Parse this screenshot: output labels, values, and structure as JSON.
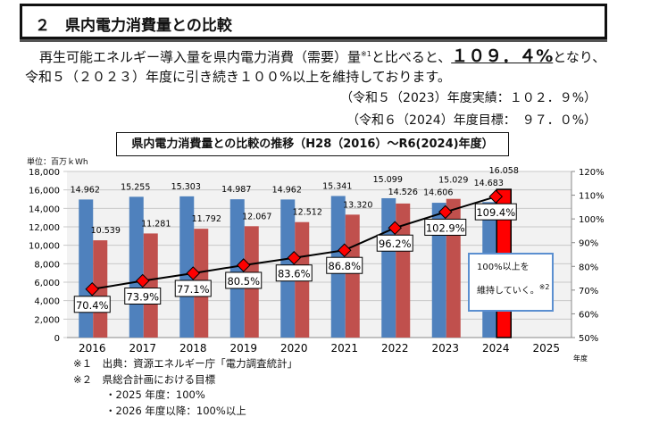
{
  "header": {
    "title": "２　県内電力消費量との比較"
  },
  "body": {
    "line1_a": "再生可能エネルギー導入量を県内電力消費（需要）量",
    "line1_sup": "※1",
    "line1_b": "と比べると、",
    "line1_highlight": "１０９．４%",
    "line1_c": "となり、",
    "line2": "令和５（２０２３）年度に引き続き１００%以上を維持しております。",
    "result": "（令和５（2023）年度実績：１０２．９%）",
    "target": "（令和６（2024）年度目標：　９７．０%）"
  },
  "chart_data": {
    "type": "bar+line",
    "title": "県内電力消費量との比較の推移（H28（2016）～R6(2024)年度）",
    "unit_label": "単位：百万ｋWh",
    "x_suffix": "年度",
    "categories": [
      "2016",
      "2017",
      "2018",
      "2019",
      "2020",
      "2021",
      "2022",
      "2023",
      "2024",
      "2025"
    ],
    "left_axis": {
      "range": [
        0,
        18000
      ],
      "ticks": [
        "0",
        "2,000",
        "4,000",
        "6,000",
        "8,000",
        "10,000",
        "12,000",
        "14,000",
        "16,000",
        "18,000"
      ]
    },
    "right_axis": {
      "range": [
        50,
        120
      ],
      "ticks": [
        "50%",
        "60%",
        "70%",
        "80%",
        "90%",
        "100%",
        "110%",
        "120%"
      ]
    },
    "grid": true,
    "series": [
      {
        "type": "bar",
        "color": "#4f81bd",
        "values": [
          14962,
          15255,
          15303,
          14987,
          14962,
          15341,
          15099,
          14606,
          14683,
          null
        ],
        "labels": [
          "14.962",
          "15.255",
          "15.303",
          "14.987",
          "14.962",
          "15.341",
          "15.099",
          "14.606",
          "14.683",
          ""
        ]
      },
      {
        "type": "bar",
        "color": "#c0504d",
        "highlight_color": "#ff0000",
        "values": [
          10539,
          11281,
          11792,
          12067,
          12512,
          13320,
          14526,
          15029,
          16058,
          null
        ],
        "labels": [
          "10.539",
          "11.281",
          "11.792",
          "12.067",
          "12.512",
          "13.320",
          "14.526",
          "15.029",
          "16.058",
          ""
        ]
      },
      {
        "type": "line",
        "axis": "right",
        "color": "#000000",
        "marker_color": "#ff0000",
        "values": [
          70.4,
          73.9,
          77.1,
          80.5,
          83.6,
          86.8,
          96.2,
          102.9,
          109.4,
          null
        ],
        "labels": [
          "70.4%",
          "73.9%",
          "77.1%",
          "80.5%",
          "83.6%",
          "86.8%",
          "96.2%",
          "102.9%",
          "109.4%",
          ""
        ]
      }
    ],
    "annotation": {
      "line1": "100%以上を",
      "line2": "維持していく。",
      "sup": "※2"
    }
  },
  "footnotes": {
    "n1": "※１　出典：資源エネルギー庁「電力調査統計」",
    "n2": "※２　県総合計画における目標",
    "n2a": "・2025 年度：100%",
    "n2b": "・2026 年度以降：100%以上"
  }
}
